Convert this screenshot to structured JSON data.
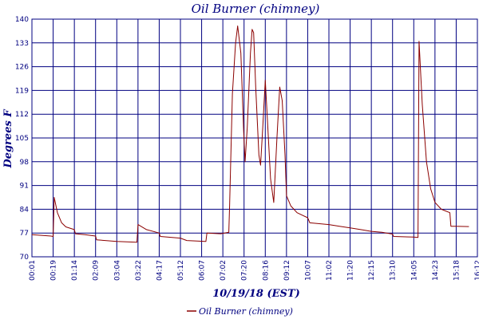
{
  "chart_data": {
    "type": "line",
    "title": "Oil Burner (chimney)",
    "ylabel": "Degrees F",
    "xlabel": "10/19/18 (EST)",
    "ylim": [
      70,
      140
    ],
    "yticks": [
      70,
      77,
      84,
      91,
      98,
      105,
      112,
      119,
      126,
      133,
      140
    ],
    "xtick_labels": [
      "00:01",
      "00:19",
      "01:14",
      "02:09",
      "03:04",
      "03:22",
      "04:17",
      "05:12",
      "06:07",
      "07:02",
      "07:20",
      "08:16",
      "09:12",
      "10:07",
      "11:02",
      "11:20",
      "12:15",
      "13:10",
      "14:05",
      "14:23",
      "15:18",
      "16:12"
    ],
    "grid": true,
    "legend_position": "bottom-center",
    "series": [
      {
        "name": "Oil Burner (chimney)",
        "color": "#8b0000",
        "points": [
          [
            0,
            76.5
          ],
          [
            0.9,
            76.1
          ],
          [
            1.0,
            76.0
          ],
          [
            1.05,
            87.5
          ],
          [
            1.2,
            83.0
          ],
          [
            1.4,
            80.0
          ],
          [
            1.6,
            78.8
          ],
          [
            2.0,
            78.0
          ],
          [
            2.05,
            76.8
          ],
          [
            2.5,
            76.5
          ],
          [
            3.0,
            76.1
          ],
          [
            3.05,
            75.0
          ],
          [
            4.0,
            74.5
          ],
          [
            4.95,
            74.3
          ],
          [
            5.0,
            79.5
          ],
          [
            5.4,
            78.0
          ],
          [
            6.0,
            77.0
          ],
          [
            6.05,
            76.0
          ],
          [
            7.0,
            75.5
          ],
          [
            7.3,
            74.8
          ],
          [
            8.2,
            74.5
          ],
          [
            8.25,
            77.0
          ],
          [
            8.9,
            76.8
          ],
          [
            9.28,
            77.2
          ],
          [
            9.32,
            85.0
          ],
          [
            9.45,
            118.0
          ],
          [
            9.6,
            133.0
          ],
          [
            9.7,
            138.0
          ],
          [
            9.85,
            130.0
          ],
          [
            9.98,
            107.0
          ],
          [
            10.05,
            98.0
          ],
          [
            10.15,
            108.0
          ],
          [
            10.3,
            130.0
          ],
          [
            10.38,
            137.0
          ],
          [
            10.45,
            136.0
          ],
          [
            10.55,
            120.0
          ],
          [
            10.7,
            100.0
          ],
          [
            10.78,
            97.0
          ],
          [
            10.88,
            108.0
          ],
          [
            11.0,
            122.0
          ],
          [
            11.12,
            108.0
          ],
          [
            11.25,
            93.0
          ],
          [
            11.4,
            86.0
          ],
          [
            11.55,
            105.0
          ],
          [
            11.68,
            120.0
          ],
          [
            11.8,
            116.0
          ],
          [
            11.93,
            100.0
          ],
          [
            12.0,
            88.0
          ],
          [
            12.2,
            85.0
          ],
          [
            12.5,
            83.0
          ],
          [
            13.0,
            81.5
          ],
          [
            13.1,
            80.0
          ],
          [
            14.0,
            79.5
          ],
          [
            14.5,
            79.0
          ],
          [
            15.0,
            78.5
          ],
          [
            15.5,
            78.0
          ],
          [
            16.0,
            77.5
          ],
          [
            16.5,
            77.2
          ],
          [
            17.0,
            76.7
          ],
          [
            17.05,
            76.0
          ],
          [
            18.0,
            75.8
          ],
          [
            18.2,
            75.7
          ],
          [
            18.25,
            133.5
          ],
          [
            18.4,
            115.0
          ],
          [
            18.6,
            98.0
          ],
          [
            18.8,
            90.0
          ],
          [
            19.0,
            86.0
          ],
          [
            19.3,
            84.0
          ],
          [
            19.5,
            83.5
          ],
          [
            19.7,
            83.0
          ],
          [
            19.75,
            79.0
          ],
          [
            20.0,
            79.0
          ],
          [
            20.6,
            78.9
          ]
        ]
      }
    ]
  }
}
